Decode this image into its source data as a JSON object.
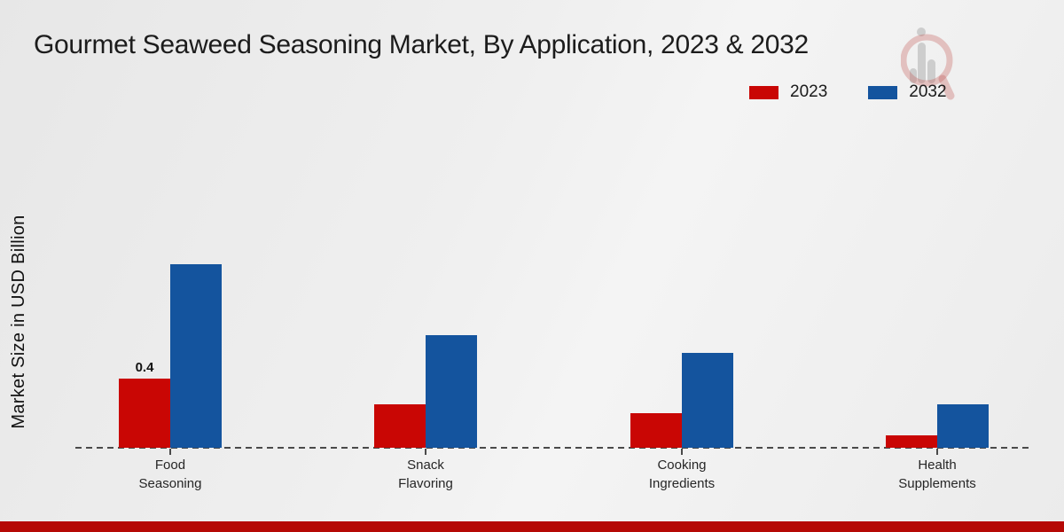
{
  "title": "Gourmet Seaweed Seasoning Market, By Application, 2023 & 2032",
  "colors": {
    "series_2023": "#c90604",
    "series_2032": "#14549e",
    "footer_band": "#b50905",
    "axis": "#4a4a4a"
  },
  "icons": {
    "watermark": "magnifier-bar-chart-logo-icon"
  },
  "chart_data": {
    "type": "bar",
    "title": "Gourmet Seaweed Seasoning Market, By Application, 2023 & 2032",
    "xlabel": "",
    "ylabel": "Market Size in USD Billion",
    "categories": [
      "Food Seasoning",
      "Snack Flavoring",
      "Cooking Ingredients",
      "Health Supplements"
    ],
    "series": [
      {
        "name": "2023",
        "color": "#c90604",
        "values": [
          0.4,
          0.25,
          0.2,
          0.07
        ],
        "data_labels": [
          "0.4",
          "",
          "",
          ""
        ]
      },
      {
        "name": "2032",
        "color": "#14549e",
        "values": [
          1.06,
          0.65,
          0.55,
          0.25
        ],
        "data_labels": [
          "",
          "",
          "",
          ""
        ]
      }
    ],
    "ylim": [
      0,
      1.2
    ],
    "grid": false,
    "y_axis_ticks_visible": false,
    "baseline_style": "dashed",
    "legend_position": "top-right"
  }
}
